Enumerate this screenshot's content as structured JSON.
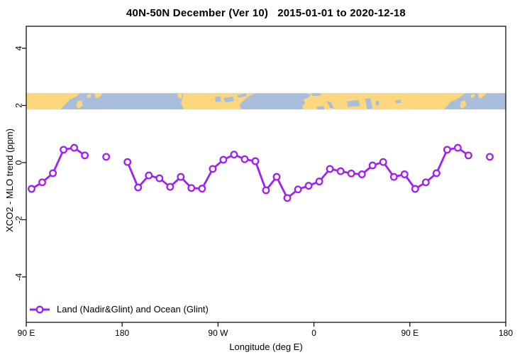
{
  "title": "40N-50N December (Ver 10)   2015-01-01 to 2020-12-18",
  "axes": {
    "x_label": "Longitude (deg E)",
    "y_label": "XCO2 - MLO trend (ppm)",
    "x_ticks": [
      {
        "value": 90,
        "label": "90 E"
      },
      {
        "value": 180,
        "label": "180"
      },
      {
        "value": 270,
        "label": "90 W"
      },
      {
        "value": 360,
        "label": "0"
      },
      {
        "value": 450,
        "label": "90 E"
      },
      {
        "value": 540,
        "label": "180"
      }
    ],
    "y_ticks": [
      {
        "value": 4,
        "label": "4"
      },
      {
        "value": 2,
        "label": "2"
      },
      {
        "value": 0,
        "label": "0"
      },
      {
        "value": -2,
        "label": "-2"
      },
      {
        "value": -4,
        "label": "-4"
      }
    ]
  },
  "legend": {
    "label": "Land (Nadir&Glint) and Ocean (Glint)"
  },
  "colors": {
    "series": "#A020F0",
    "marker_fill": "#ffffff",
    "axis": "#000000",
    "land": "#FCD77D",
    "ocean": "#A9BEDB"
  },
  "chart_data": {
    "type": "line",
    "title": "40N-50N December (Ver 10)   2015-01-01 to 2020-12-18",
    "xlabel": "Longitude (deg E)",
    "ylabel": "XCO2 - MLO trend (ppm)",
    "xlim": [
      90,
      540
    ],
    "ylim": [
      -5.2,
      5.2
    ],
    "grid": false,
    "legend_position": "bottom-left",
    "x_axis_note": "longitude axis starts at 90E and wraps eastward around the globe to 180 (450 deg span); data east of 450 repeats the 90E-180E bins",
    "series": [
      {
        "name": "Land (Nadir&Glint) and Ocean (Glint)",
        "color": "#A020F0",
        "marker": "open-circle",
        "x": [
          95,
          105,
          115,
          125,
          135,
          145,
          155,
          165,
          175,
          185,
          195,
          205,
          215,
          225,
          235,
          245,
          255,
          265,
          275,
          285,
          295,
          305,
          315,
          325,
          335,
          345,
          355,
          365,
          375,
          385,
          395,
          405,
          415,
          425,
          435,
          445,
          455,
          465,
          475,
          485,
          495,
          505,
          515,
          525
        ],
        "y": [
          -0.92,
          -0.69,
          -0.37,
          0.45,
          0.52,
          0.25,
          null,
          0.2,
          null,
          0.02,
          -0.87,
          -0.45,
          -0.55,
          -0.85,
          -0.5,
          -0.89,
          -0.91,
          -0.22,
          0.1,
          0.28,
          0.12,
          0.05,
          -0.97,
          -0.5,
          -1.24,
          -0.94,
          -0.81,
          -0.66,
          -0.22,
          -0.3,
          -0.38,
          -0.41,
          -0.1,
          0.02,
          -0.5,
          -0.41,
          -0.92,
          -0.69,
          -0.37,
          0.45,
          0.52,
          0.25,
          null,
          0.2
        ]
      }
    ]
  },
  "map_band": {
    "description": "world-map strip of the 40N-50N latitude band (land yellow, ocean blue)",
    "top_value": 2.43,
    "bottom_value": 1.86,
    "land": [
      [
        [
          90,
          0
        ],
        [
          141,
          0
        ],
        [
          137,
          0.2
        ],
        [
          131,
          0.38
        ],
        [
          128,
          0.6
        ],
        [
          122,
          1
        ],
        [
          90,
          1
        ]
      ],
      [
        [
          138,
          0.5
        ],
        [
          142,
          0.45
        ],
        [
          143,
          0.75
        ],
        [
          139,
          0.95
        ],
        [
          137,
          0.8
        ]
      ],
      [
        [
          147,
          0.12
        ],
        [
          151,
          0.05
        ],
        [
          150,
          0.3
        ],
        [
          147,
          0.25
        ]
      ],
      [
        [
          154,
          0
        ],
        [
          162,
          0
        ],
        [
          158,
          0.28
        ],
        [
          155,
          0.3
        ]
      ],
      [
        [
          232,
          0.05
        ],
        [
          236,
          0.0
        ],
        [
          236,
          0.35
        ],
        [
          232,
          0.25
        ]
      ],
      [
        [
          237,
          0
        ],
        [
          305,
          0
        ],
        [
          298,
          0.22
        ],
        [
          293,
          0.5
        ],
        [
          290,
          0.75
        ],
        [
          292,
          1
        ],
        [
          238,
          1
        ],
        [
          235,
          0.6
        ],
        [
          237,
          0.3
        ]
      ],
      [
        [
          352,
          0
        ],
        [
          502,
          0
        ],
        [
          496,
          0.3
        ],
        [
          488,
          0.55
        ],
        [
          482,
          1
        ],
        [
          350,
          1
        ],
        [
          349,
          0.8
        ],
        [
          352,
          0.6
        ],
        [
          350,
          0.4
        ],
        [
          355,
          0.25
        ],
        [
          357,
          0.1
        ]
      ],
      [
        [
          498,
          0.5
        ],
        [
          502,
          0.45
        ],
        [
          503,
          0.75
        ],
        [
          499,
          0.95
        ],
        [
          497,
          0.8
        ]
      ],
      [
        [
          507,
          0.12
        ],
        [
          511,
          0.05
        ],
        [
          510,
          0.3
        ],
        [
          507,
          0.25
        ]
      ],
      [
        [
          514,
          0
        ],
        [
          522,
          0
        ],
        [
          518,
          0.28
        ],
        [
          515,
          0.3
        ]
      ]
    ],
    "water": [
      [
        [
          267,
          0.25
        ],
        [
          272,
          0.18
        ],
        [
          273,
          0.5
        ],
        [
          268,
          0.55
        ]
      ],
      [
        [
          275,
          0.3
        ],
        [
          284,
          0.2
        ],
        [
          285,
          0.48
        ],
        [
          277,
          0.58
        ]
      ],
      [
        [
          288,
          0.12
        ],
        [
          296,
          0.02
        ],
        [
          297,
          0.18
        ],
        [
          289,
          0.28
        ]
      ],
      [
        [
          357,
          0.02
        ],
        [
          366,
          0.0
        ],
        [
          367,
          0.14
        ],
        [
          359,
          0.18
        ]
      ],
      [
        [
          362,
          0.85
        ],
        [
          369,
          0.78
        ],
        [
          370,
          1
        ],
        [
          363,
          1
        ]
      ],
      [
        [
          372,
          0.5
        ],
        [
          376,
          0.55
        ],
        [
          379,
          0.95
        ],
        [
          375,
          0.9
        ]
      ],
      [
        [
          391,
          0.5
        ],
        [
          402,
          0.42
        ],
        [
          403,
          0.78
        ],
        [
          392,
          0.85
        ]
      ],
      [
        [
          408,
          0.35
        ],
        [
          413,
          0.3
        ],
        [
          415,
          0.95
        ],
        [
          410,
          1
        ]
      ],
      [
        [
          418,
          0.48
        ],
        [
          421,
          0.48
        ],
        [
          421,
          0.75
        ],
        [
          418,
          0.75
        ]
      ],
      [
        [
          436,
          0.45
        ],
        [
          441,
          0.4
        ],
        [
          442,
          0.6
        ],
        [
          437,
          0.62
        ]
      ]
    ]
  }
}
